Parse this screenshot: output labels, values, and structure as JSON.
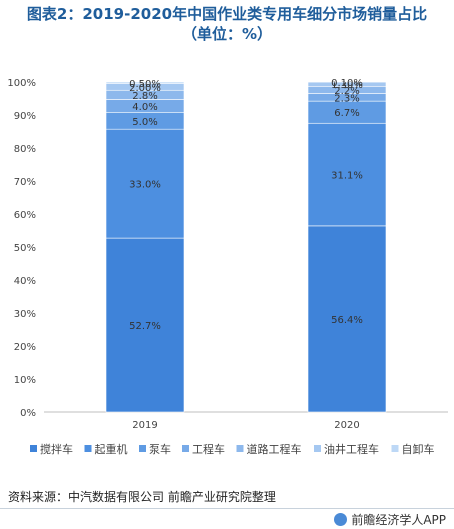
{
  "title": {
    "line1": "图表2：2019-2020年中国作业类专用车细分市场销量占比",
    "line2": "（单位：%）"
  },
  "chart_data": {
    "type": "bar",
    "stacked": true,
    "categories": [
      "2019",
      "2020"
    ],
    "ylim": [
      0,
      100
    ],
    "yticks": [
      "0%",
      "10%",
      "20%",
      "30%",
      "40%",
      "50%",
      "60%",
      "70%",
      "80%",
      "90%",
      "100%"
    ],
    "series": [
      {
        "name": "搅拌车",
        "values": [
          52.7,
          56.4
        ],
        "labels": [
          "52.7%",
          "56.4%"
        ],
        "color": "#3f83d9"
      },
      {
        "name": "起重机",
        "values": [
          33.0,
          31.1
        ],
        "labels": [
          "33.0%",
          "31.1%"
        ],
        "color": "#4d8fe0"
      },
      {
        "name": "泵车",
        "values": [
          5.0,
          6.7
        ],
        "labels": [
          "5.0%",
          "6.7%"
        ],
        "color": "#5f9be3"
      },
      {
        "name": "工程车",
        "values": [
          4.0,
          2.3
        ],
        "labels": [
          "4.0%",
          "2.3%"
        ],
        "color": "#77aae8"
      },
      {
        "name": "道路工程车",
        "values": [
          2.8,
          2.2
        ],
        "labels": [
          "2.8%",
          "2.2%"
        ],
        "color": "#8db8ec"
      },
      {
        "name": "油井工程车",
        "values": [
          2.0,
          1.3
        ],
        "labels": [
          "2.00%",
          "1.30%"
        ],
        "color": "#a5c8f1"
      },
      {
        "name": "自卸车",
        "values": [
          0.5,
          0.1
        ],
        "labels": [
          "0.50%",
          "0.10%"
        ],
        "color": "#bdd8f6"
      }
    ],
    "legend_position": "bottom",
    "grid": false
  },
  "source": "资料来源：中汽数据有限公司 前瞻产业研究院整理",
  "brand": "前瞻经济学人APP"
}
